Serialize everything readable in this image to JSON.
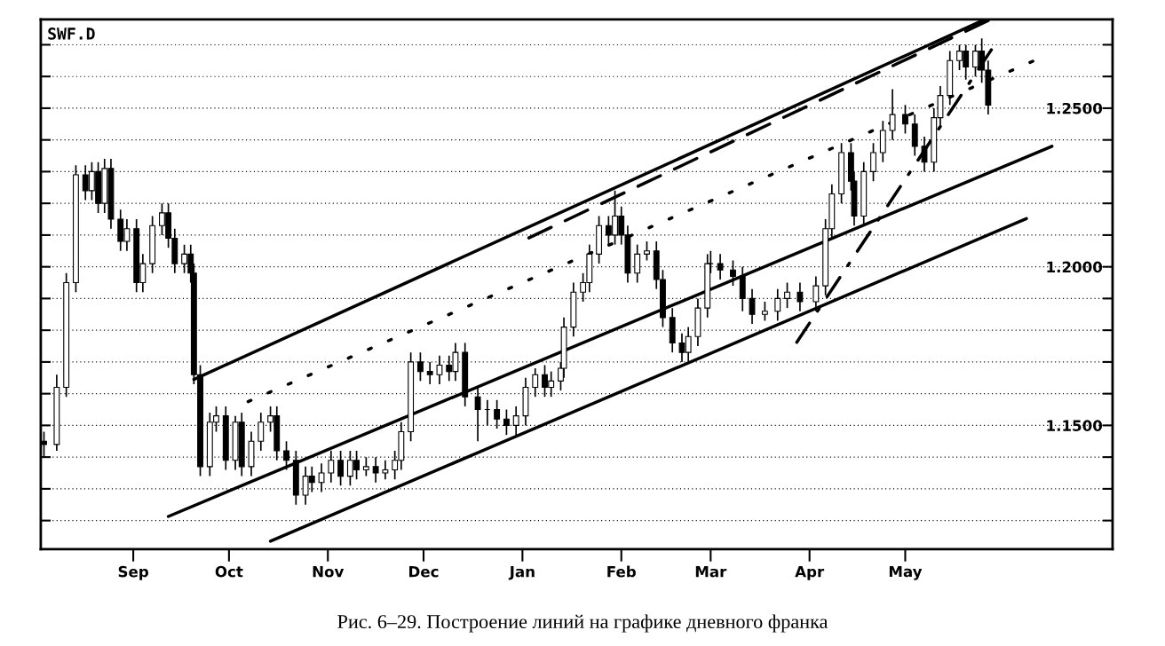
{
  "chart_data": {
    "type": "candlestick",
    "title": "SWF.D",
    "annotations": [
      "Рис. 6–29. Построение линий на графике дневного франка"
    ],
    "x": [
      "2000-08-04",
      "2000-08-08",
      "2000-08-11",
      "2000-08-14",
      "2000-08-17",
      "2000-08-19",
      "2000-08-21",
      "2000-08-23",
      "2000-08-25",
      "2000-08-28",
      "2000-08-30",
      "2000-09-02",
      "2000-09-04",
      "2000-09-07",
      "2000-09-10",
      "2000-09-12",
      "2000-09-14",
      "2000-09-17",
      "2000-09-19",
      "2000-09-20",
      "2000-09-22",
      "2000-09-25",
      "2000-09-27",
      "2000-09-30",
      "2000-10-03",
      "2000-10-05",
      "2000-10-08",
      "2000-10-11",
      "2000-10-14",
      "2000-10-16",
      "2000-10-19",
      "2000-10-22",
      "2000-10-25",
      "2000-10-27",
      "2000-10-30",
      "2000-11-02",
      "2000-11-05",
      "2000-11-08",
      "2000-11-10",
      "2000-11-13",
      "2000-11-16",
      "2000-11-19",
      "2000-11-22",
      "2000-11-24",
      "2000-11-27",
      "2000-11-30",
      "2000-12-03",
      "2000-12-06",
      "2000-12-09",
      "2000-12-11",
      "2000-12-14",
      "2000-12-18",
      "2000-12-21",
      "2000-12-24",
      "2000-12-27",
      "2000-12-30",
      "2001-01-02",
      "2001-01-05",
      "2001-01-08",
      "2001-01-10",
      "2001-01-13",
      "2001-01-14",
      "2001-01-17",
      "2001-01-20",
      "2001-01-22",
      "2001-01-25",
      "2001-01-28",
      "2001-01-30",
      "2001-02-01",
      "2001-02-03",
      "2001-02-06",
      "2001-02-09",
      "2001-02-12",
      "2001-02-14",
      "2001-02-17",
      "2001-02-20",
      "2001-02-22",
      "2001-02-25",
      "2001-02-28",
      "2001-03-01",
      "2001-03-04",
      "2001-03-08",
      "2001-03-11",
      "2001-03-14",
      "2001-03-18",
      "2001-03-22",
      "2001-03-25",
      "2001-03-29",
      "2001-04-03",
      "2001-04-06",
      "2001-04-08",
      "2001-04-11",
      "2001-04-14",
      "2001-04-15",
      "2001-04-18",
      "2001-04-21",
      "2001-04-24",
      "2001-04-27",
      "2001-05-01",
      "2001-05-04",
      "2001-05-07",
      "2001-05-10",
      "2001-05-12",
      "2001-05-15",
      "2001-05-18",
      "2001-05-20",
      "2001-05-23",
      "2001-05-25",
      "2001-05-27"
    ],
    "ohlc": [
      [
        1.145,
        1.148,
        1.14,
        1.144
      ],
      [
        1.144,
        1.166,
        1.142,
        1.162
      ],
      [
        1.162,
        1.198,
        1.159,
        1.195
      ],
      [
        1.195,
        1.232,
        1.192,
        1.229
      ],
      [
        1.229,
        1.232,
        1.221,
        1.224
      ],
      [
        1.224,
        1.233,
        1.221,
        1.23
      ],
      [
        1.23,
        1.233,
        1.217,
        1.22
      ],
      [
        1.22,
        1.234,
        1.217,
        1.231
      ],
      [
        1.231,
        1.234,
        1.212,
        1.215
      ],
      [
        1.215,
        1.218,
        1.205,
        1.208
      ],
      [
        1.208,
        1.215,
        1.205,
        1.212
      ],
      [
        1.212,
        1.215,
        1.192,
        1.195
      ],
      [
        1.195,
        1.204,
        1.192,
        1.201
      ],
      [
        1.201,
        1.216,
        1.198,
        1.213
      ],
      [
        1.213,
        1.22,
        1.21,
        1.217
      ],
      [
        1.217,
        1.22,
        1.206,
        1.209
      ],
      [
        1.209,
        1.212,
        1.198,
        1.201
      ],
      [
        1.201,
        1.207,
        1.198,
        1.204
      ],
      [
        1.204,
        1.207,
        1.195,
        1.198
      ],
      [
        1.198,
        1.201,
        1.163,
        1.166
      ],
      [
        1.166,
        1.169,
        1.134,
        1.137
      ],
      [
        1.137,
        1.154,
        1.134,
        1.151
      ],
      [
        1.151,
        1.156,
        1.148,
        1.153
      ],
      [
        1.153,
        1.156,
        1.136,
        1.139
      ],
      [
        1.139,
        1.153,
        1.136,
        1.151
      ],
      [
        1.151,
        1.154,
        1.134,
        1.137
      ],
      [
        1.137,
        1.148,
        1.134,
        1.145
      ],
      [
        1.145,
        1.154,
        1.142,
        1.151
      ],
      [
        1.151,
        1.156,
        1.148,
        1.153
      ],
      [
        1.153,
        1.156,
        1.139,
        1.142
      ],
      [
        1.142,
        1.145,
        1.136,
        1.139
      ],
      [
        1.139,
        1.142,
        1.125,
        1.128
      ],
      [
        1.128,
        1.137,
        1.125,
        1.134
      ],
      [
        1.134,
        1.137,
        1.129,
        1.132
      ],
      [
        1.132,
        1.138,
        1.129,
        1.135
      ],
      [
        1.135,
        1.142,
        1.132,
        1.139
      ],
      [
        1.139,
        1.142,
        1.131,
        1.134
      ],
      [
        1.134,
        1.142,
        1.131,
        1.139
      ],
      [
        1.139,
        1.142,
        1.133,
        1.136
      ],
      [
        1.136,
        1.14,
        1.134,
        1.137
      ],
      [
        1.137,
        1.14,
        1.132,
        1.135
      ],
      [
        1.135,
        1.139,
        1.133,
        1.136
      ],
      [
        1.136,
        1.142,
        1.133,
        1.139
      ],
      [
        1.139,
        1.151,
        1.136,
        1.148
      ],
      [
        1.148,
        1.173,
        1.145,
        1.17
      ],
      [
        1.17,
        1.173,
        1.164,
        1.167
      ],
      [
        1.167,
        1.17,
        1.163,
        1.166
      ],
      [
        1.166,
        1.172,
        1.163,
        1.169
      ],
      [
        1.169,
        1.172,
        1.164,
        1.167
      ],
      [
        1.167,
        1.176,
        1.164,
        1.173
      ],
      [
        1.173,
        1.176,
        1.156,
        1.159
      ],
      [
        1.159,
        1.162,
        1.145,
        1.155
      ],
      [
        1.155,
        1.158,
        1.15,
        1.155
      ],
      [
        1.155,
        1.158,
        1.149,
        1.152
      ],
      [
        1.152,
        1.155,
        1.147,
        1.15
      ],
      [
        1.15,
        1.156,
        1.147,
        1.153
      ],
      [
        1.153,
        1.165,
        1.15,
        1.162
      ],
      [
        1.162,
        1.168,
        1.159,
        1.166
      ],
      [
        1.166,
        1.169,
        1.159,
        1.162
      ],
      [
        1.162,
        1.167,
        1.159,
        1.164
      ],
      [
        1.164,
        1.17,
        1.161,
        1.168
      ],
      [
        1.168,
        1.184,
        1.165,
        1.181
      ],
      [
        1.181,
        1.195,
        1.178,
        1.192
      ],
      [
        1.192,
        1.198,
        1.189,
        1.195
      ],
      [
        1.195,
        1.207,
        1.192,
        1.204
      ],
      [
        1.204,
        1.216,
        1.201,
        1.213
      ],
      [
        1.213,
        1.216,
        1.207,
        1.21
      ],
      [
        1.21,
        1.224,
        1.207,
        1.216
      ],
      [
        1.216,
        1.219,
        1.207,
        1.21
      ],
      [
        1.21,
        1.213,
        1.195,
        1.198
      ],
      [
        1.198,
        1.207,
        1.195,
        1.204
      ],
      [
        1.204,
        1.208,
        1.202,
        1.205
      ],
      [
        1.205,
        1.208,
        1.193,
        1.196
      ],
      [
        1.196,
        1.199,
        1.181,
        1.184
      ],
      [
        1.184,
        1.187,
        1.173,
        1.176
      ],
      [
        1.176,
        1.179,
        1.17,
        1.173
      ],
      [
        1.173,
        1.181,
        1.17,
        1.178
      ],
      [
        1.178,
        1.19,
        1.175,
        1.187
      ],
      [
        1.187,
        1.204,
        1.184,
        1.201
      ],
      [
        1.201,
        1.205,
        1.198,
        1.201
      ],
      [
        1.201,
        1.204,
        1.196,
        1.199
      ],
      [
        1.199,
        1.202,
        1.194,
        1.197
      ],
      [
        1.197,
        1.2,
        1.186,
        1.19
      ],
      [
        1.19,
        1.193,
        1.182,
        1.185
      ],
      [
        1.185,
        1.189,
        1.183,
        1.186
      ],
      [
        1.186,
        1.193,
        1.183,
        1.19
      ],
      [
        1.19,
        1.195,
        1.187,
        1.192
      ],
      [
        1.192,
        1.195,
        1.186,
        1.189
      ],
      [
        1.189,
        1.197,
        1.186,
        1.194
      ],
      [
        1.194,
        1.215,
        1.191,
        1.212
      ],
      [
        1.212,
        1.226,
        1.209,
        1.223
      ],
      [
        1.223,
        1.239,
        1.22,
        1.236
      ],
      [
        1.236,
        1.239,
        1.224,
        1.227
      ],
      [
        1.227,
        1.23,
        1.213,
        1.216
      ],
      [
        1.216,
        1.233,
        1.213,
        1.23
      ],
      [
        1.23,
        1.239,
        1.227,
        1.236
      ],
      [
        1.236,
        1.246,
        1.233,
        1.243
      ],
      [
        1.243,
        1.256,
        1.24,
        1.248
      ],
      [
        1.248,
        1.251,
        1.242,
        1.245
      ],
      [
        1.245,
        1.248,
        1.235,
        1.238
      ],
      [
        1.238,
        1.241,
        1.23,
        1.233
      ],
      [
        1.233,
        1.25,
        1.23,
        1.247
      ],
      [
        1.247,
        1.257,
        1.244,
        1.254
      ],
      [
        1.254,
        1.268,
        1.251,
        1.265
      ],
      [
        1.265,
        1.27,
        1.262,
        1.268
      ],
      [
        1.268,
        1.27,
        1.259,
        1.263
      ],
      [
        1.263,
        1.27,
        1.26,
        1.268
      ],
      [
        1.268,
        1.272,
        1.258,
        1.262
      ],
      [
        1.262,
        1.265,
        1.248,
        1.251
      ]
    ],
    "series": [
      {
        "type": "line",
        "color": "#000000",
        "line_style": "solid",
        "x": [
          "2000-09-20",
          "2001-05-26"
        ],
        "values": [
          1.1645,
          1.278
        ]
      },
      {
        "type": "line",
        "color": "#000000",
        "line_style": "dashed",
        "x": [
          "2001-01-03",
          "2001-05-27"
        ],
        "values": [
          1.2091,
          1.2776
        ]
      },
      {
        "type": "line",
        "color": "#000000",
        "line_style": "dotted",
        "x": [
          "2000-10-07",
          "2001-06-10"
        ],
        "values": [
          1.1575,
          1.2648
        ]
      },
      {
        "type": "line",
        "color": "#000000",
        "line_style": "solid",
        "x": [
          "2000-09-12",
          "2001-06-16"
        ],
        "values": [
          1.1213,
          1.238
        ]
      },
      {
        "type": "line",
        "color": "#000000",
        "line_style": "solid",
        "x": [
          "2000-10-14",
          "2001-06-08"
        ],
        "values": [
          1.1135,
          1.2152
        ]
      },
      {
        "type": "line",
        "color": "#000000",
        "line_style": "dashdot",
        "x": [
          "2001-03-28",
          "2001-05-28"
        ],
        "values": [
          1.1762,
          1.2684
        ]
      }
    ],
    "color": "#000000",
    "xlim": [
      "2000-08-03",
      "2001-07-05"
    ],
    "xticks": [
      {
        "value": "2000-09-01",
        "label": "Sep"
      },
      {
        "value": "2000-10-01",
        "label": "Oct"
      },
      {
        "value": "2000-11-01",
        "label": "Nov"
      },
      {
        "value": "2000-12-01",
        "label": "Dec"
      },
      {
        "value": "2001-01-01",
        "label": "Jan"
      },
      {
        "value": "2001-02-01",
        "label": "Feb"
      },
      {
        "value": "2001-03-01",
        "label": "Mar"
      },
      {
        "value": "2001-04-01",
        "label": "Apr"
      },
      {
        "value": "2001-05-01",
        "label": "May"
      }
    ],
    "ylim": [
      1.111,
      1.278
    ],
    "yticks": [
      {
        "value": 1.12,
        "label": null
      },
      {
        "value": 1.13,
        "label": null
      },
      {
        "value": 1.14,
        "label": null
      },
      {
        "value": 1.15,
        "label": "1.1500"
      },
      {
        "value": 1.16,
        "label": null
      },
      {
        "value": 1.17,
        "label": null
      },
      {
        "value": 1.18,
        "label": null
      },
      {
        "value": 1.19,
        "label": null
      },
      {
        "value": 1.2,
        "label": "1.2000"
      },
      {
        "value": 1.21,
        "label": null
      },
      {
        "value": 1.22,
        "label": null
      },
      {
        "value": 1.23,
        "label": null
      },
      {
        "value": 1.24,
        "label": null
      },
      {
        "value": 1.25,
        "label": "1.2500"
      },
      {
        "value": 1.26,
        "label": null
      },
      {
        "value": 1.27,
        "label": null
      }
    ],
    "grid": "y"
  }
}
